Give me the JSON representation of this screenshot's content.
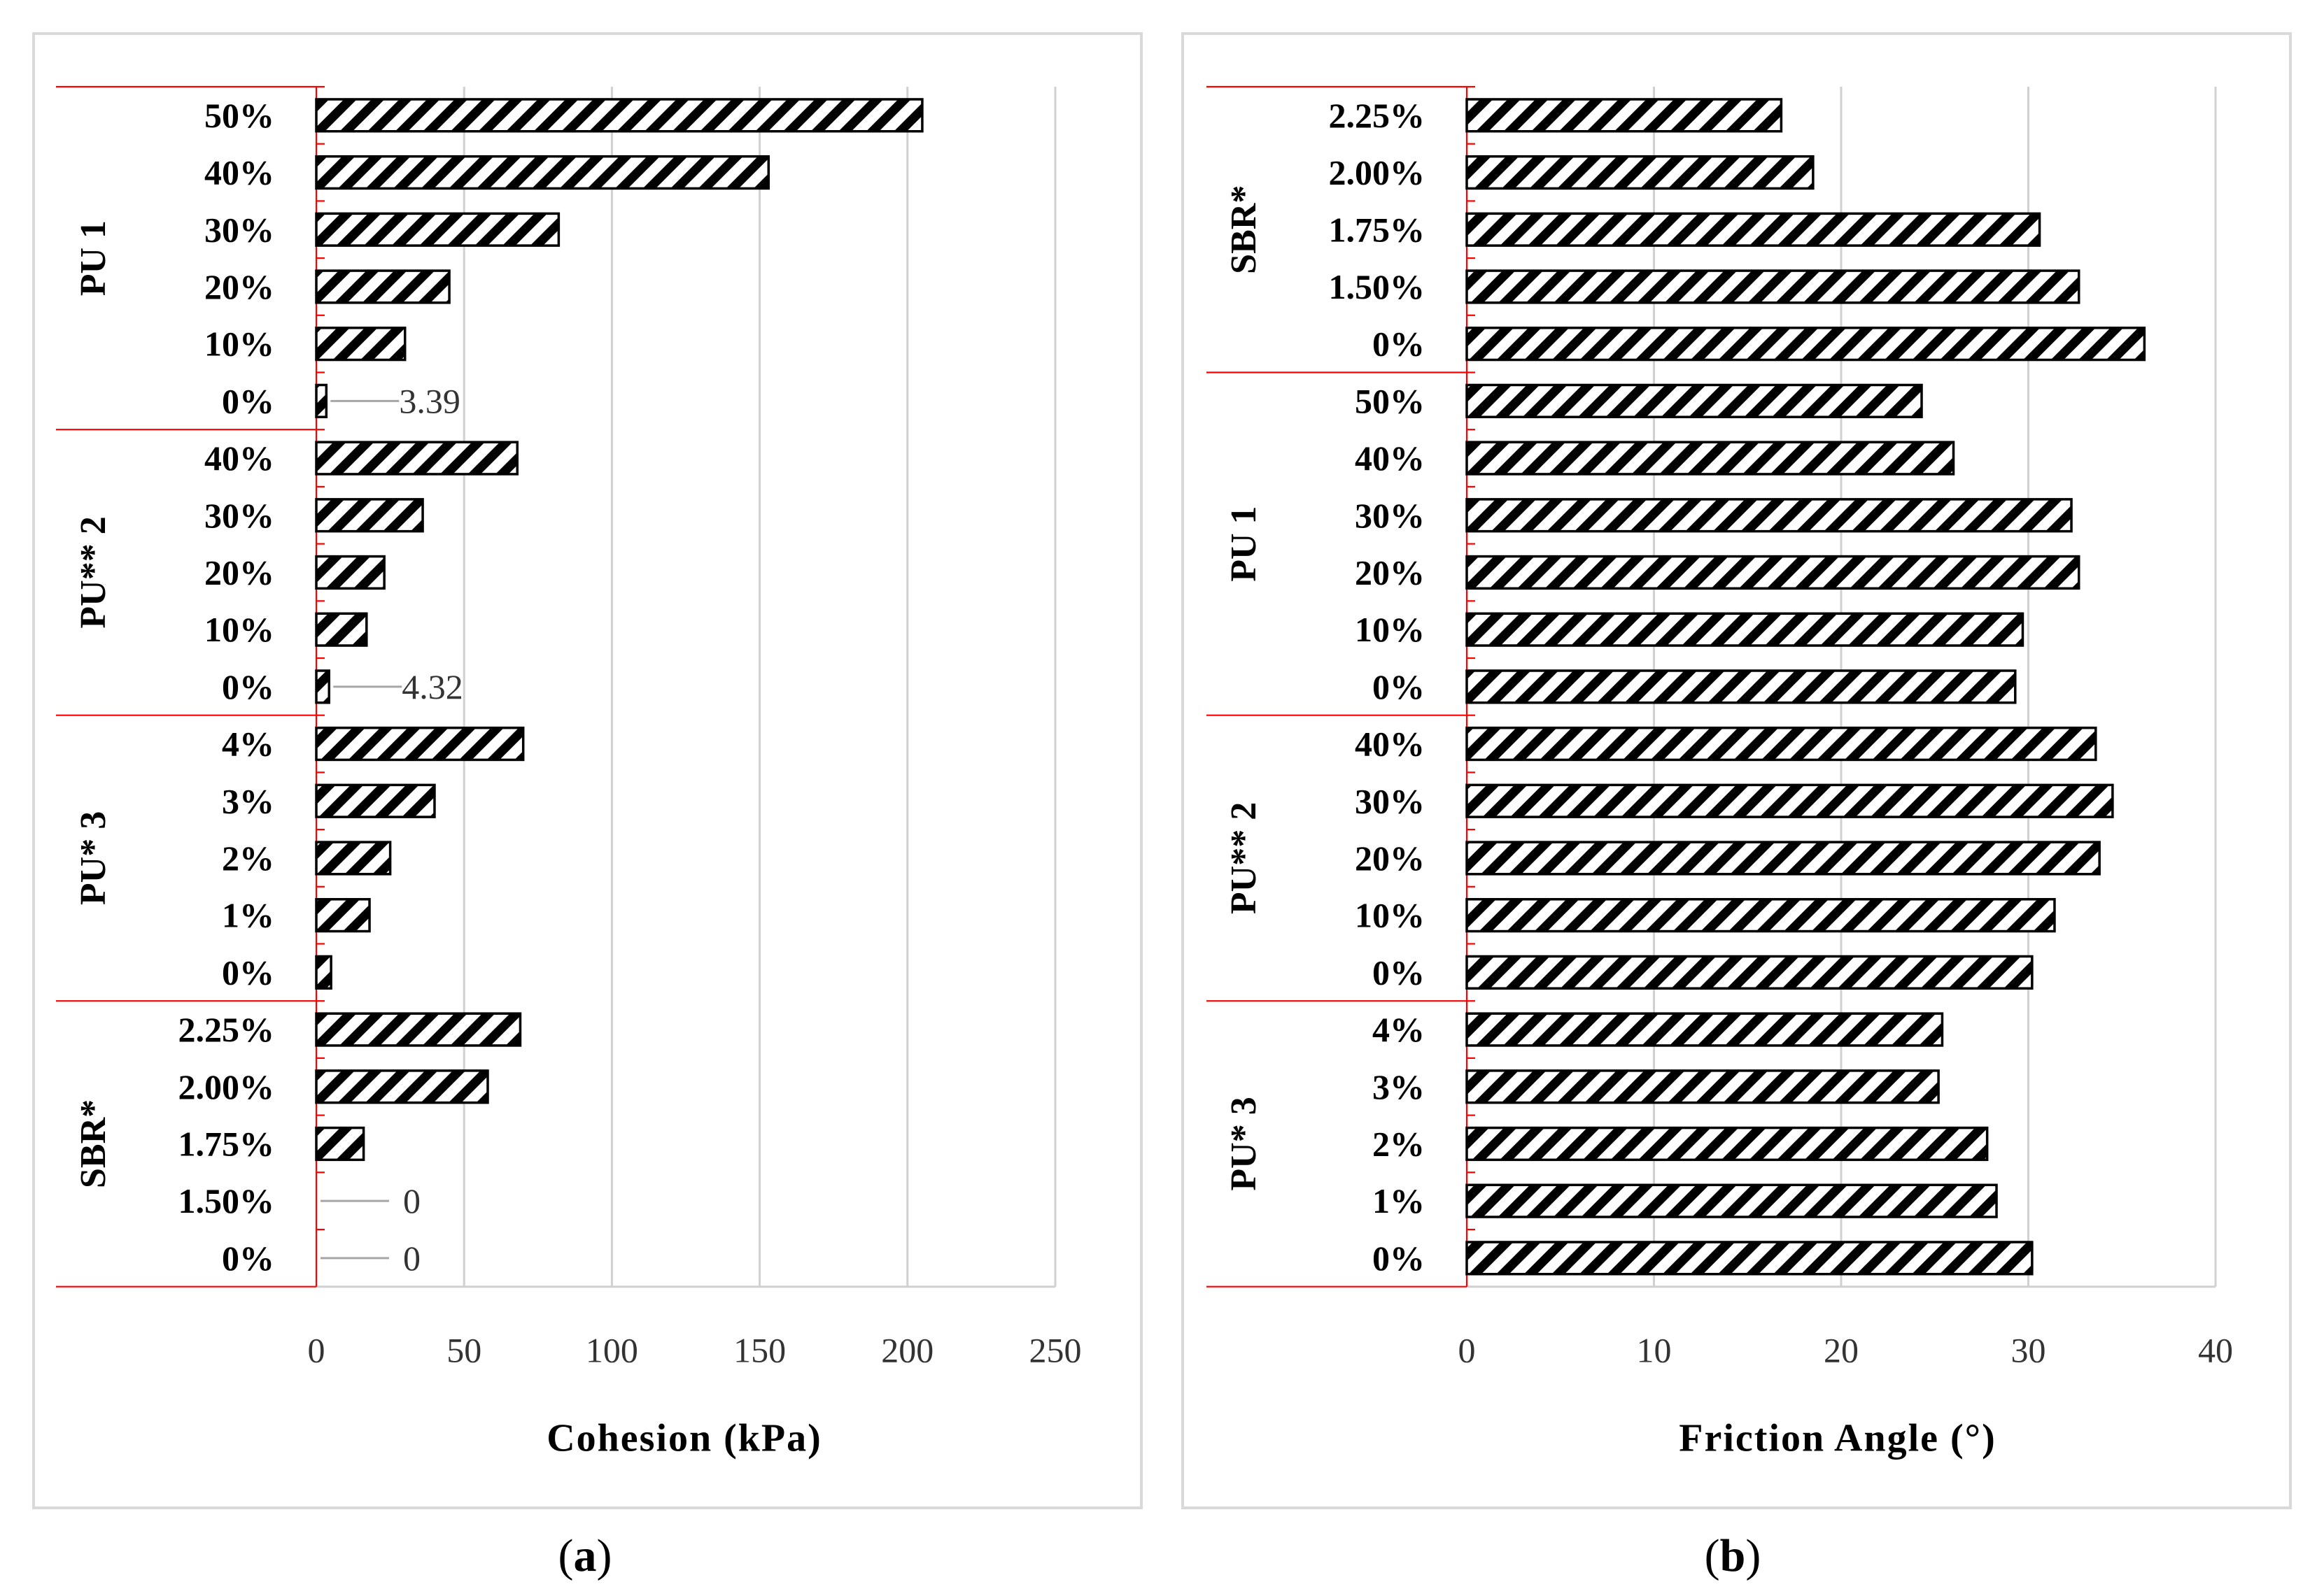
{
  "chart_data": [
    {
      "type": "bar",
      "orientation": "horizontal",
      "panel_label": "(a)",
      "panel_letter": "a",
      "xlabel": "Cohesion (kPa)",
      "xlim": [
        0,
        250
      ],
      "xticks": [
        0,
        50,
        100,
        150,
        200,
        250
      ],
      "groups": [
        {
          "name": "PU 1",
          "categories": [
            "50%",
            "40%",
            "30%",
            "20%",
            "10%",
            "0%"
          ],
          "values": [
            205,
            153,
            82,
            45,
            30,
            3.39
          ]
        },
        {
          "name": "PU** 2",
          "categories": [
            "40%",
            "30%",
            "20%",
            "10%",
            "0%"
          ],
          "values": [
            68,
            36,
            23,
            17,
            4.32
          ]
        },
        {
          "name": "PU* 3",
          "categories": [
            "4%",
            "3%",
            "2%",
            "1%",
            "0%"
          ],
          "values": [
            70,
            40,
            25,
            18,
            5
          ]
        },
        {
          "name": "SBR*",
          "categories": [
            "2.25%",
            "2.00%",
            "1.75%",
            "1.50%",
            "0%"
          ],
          "values": [
            69,
            58,
            16,
            0,
            0
          ]
        }
      ],
      "data_labels": [
        {
          "group": "PU 1",
          "category": "0%",
          "text": "3.39"
        },
        {
          "group": "PU** 2",
          "category": "0%",
          "text": "4.32"
        },
        {
          "group": "SBR*",
          "category": "1.50%",
          "text": "0"
        },
        {
          "group": "SBR*",
          "category": "0%",
          "text": "0"
        }
      ]
    },
    {
      "type": "bar",
      "orientation": "horizontal",
      "panel_label": "(b)",
      "panel_letter": "b",
      "xlabel": "Friction Angle (°)",
      "xlim": [
        0,
        40
      ],
      "xticks": [
        0,
        10,
        20,
        30,
        40
      ],
      "groups": [
        {
          "name": "SBR*",
          "categories": [
            "2.25%",
            "2.00%",
            "1.75%",
            "1.50%",
            "0%"
          ],
          "values": [
            16.8,
            18.5,
            30.6,
            32.7,
            36.2
          ]
        },
        {
          "name": "PU 1",
          "categories": [
            "50%",
            "40%",
            "30%",
            "20%",
            "10%",
            "0%"
          ],
          "values": [
            24.3,
            26,
            32.3,
            32.7,
            29.7,
            29.3
          ]
        },
        {
          "name": "PU** 2",
          "categories": [
            "40%",
            "30%",
            "20%",
            "10%",
            "0%"
          ],
          "values": [
            33.6,
            34.5,
            33.8,
            31.4,
            30.2
          ]
        },
        {
          "name": "PU* 3",
          "categories": [
            "4%",
            "3%",
            "2%",
            "1%",
            "0%"
          ],
          "values": [
            25.4,
            25.2,
            27.8,
            28.3,
            30.2
          ]
        }
      ],
      "data_labels": []
    }
  ]
}
